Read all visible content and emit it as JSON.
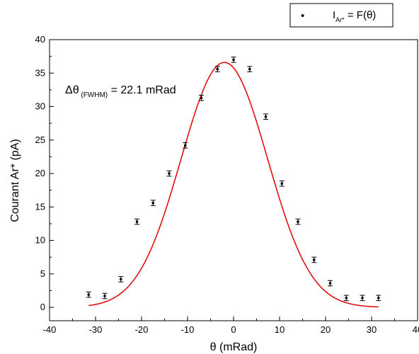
{
  "chart_data": {
    "type": "scatter",
    "xlabel": "θ (mRad)",
    "ylabel": "Courant Ar* (pA)",
    "xlim": [
      -40,
      40
    ],
    "ylim": [
      -2,
      40
    ],
    "xticks": [
      -40,
      -30,
      -20,
      -10,
      0,
      10,
      20,
      30,
      40
    ],
    "yticks": [
      0,
      5,
      10,
      15,
      20,
      25,
      30,
      35,
      40
    ],
    "x_tick_labels": [
      "-40",
      "-30",
      "-20",
      "-10",
      "0",
      "10",
      "20",
      "30",
      "40"
    ],
    "y_tick_labels": [
      "0",
      "5",
      "10",
      "15",
      "20",
      "25",
      "30",
      "35",
      "40"
    ],
    "grid": false,
    "legend_position": "top-right",
    "legend": {
      "marker": "•",
      "main": "I",
      "sub": "Ar*",
      "rest": " = F(θ)"
    },
    "annotation": {
      "main": "Δθ",
      "sub": " (FWHM)",
      "rest": " = 22.1 mRad"
    },
    "points": [
      {
        "x": -31.5,
        "y": 1.9,
        "err": 0.4
      },
      {
        "x": -28.0,
        "y": 1.7,
        "err": 0.4
      },
      {
        "x": -24.5,
        "y": 4.2,
        "err": 0.4
      },
      {
        "x": -21.0,
        "y": 12.8,
        "err": 0.4
      },
      {
        "x": -17.5,
        "y": 15.6,
        "err": 0.4
      },
      {
        "x": -14.0,
        "y": 20.0,
        "err": 0.4
      },
      {
        "x": -10.5,
        "y": 24.2,
        "err": 0.4
      },
      {
        "x": -7.0,
        "y": 31.3,
        "err": 0.4
      },
      {
        "x": -3.5,
        "y": 35.6,
        "err": 0.4
      },
      {
        "x": 0.0,
        "y": 37.0,
        "err": 0.4
      },
      {
        "x": 3.5,
        "y": 35.6,
        "err": 0.4
      },
      {
        "x": 7.0,
        "y": 28.5,
        "err": 0.4
      },
      {
        "x": 10.5,
        "y": 18.5,
        "err": 0.4
      },
      {
        "x": 14.0,
        "y": 12.8,
        "err": 0.4
      },
      {
        "x": 17.5,
        "y": 7.1,
        "err": 0.4
      },
      {
        "x": 21.0,
        "y": 3.6,
        "err": 0.4
      },
      {
        "x": 24.5,
        "y": 1.4,
        "err": 0.4
      },
      {
        "x": 28.0,
        "y": 1.4,
        "err": 0.4
      },
      {
        "x": 31.5,
        "y": 1.4,
        "err": 0.4
      }
    ],
    "fit": {
      "type": "gaussian",
      "y0": 0.0,
      "A": 36.6,
      "xc": -2.0,
      "w": 9.4,
      "x_range": [
        -31.5,
        31.5
      ],
      "color": "#e00000"
    }
  }
}
